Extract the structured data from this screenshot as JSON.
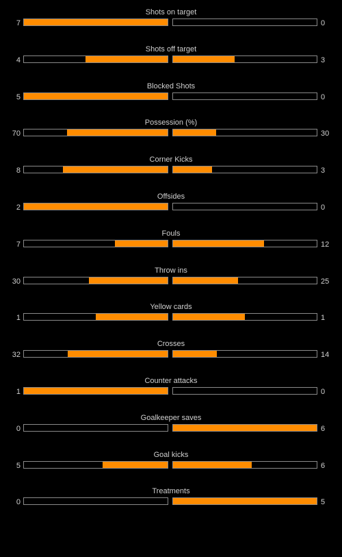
{
  "accent_color": "#ff8c00",
  "stats": [
    {
      "label": "Shots on target",
      "home": 7,
      "away": 0
    },
    {
      "label": "Shots off target",
      "home": 4,
      "away": 3
    },
    {
      "label": "Blocked Shots",
      "home": 5,
      "away": 0
    },
    {
      "label": "Possession (%)",
      "home": 70,
      "away": 30
    },
    {
      "label": "Corner Kicks",
      "home": 8,
      "away": 3
    },
    {
      "label": "Offsides",
      "home": 2,
      "away": 0
    },
    {
      "label": "Fouls",
      "home": 7,
      "away": 12
    },
    {
      "label": "Throw ins",
      "home": 30,
      "away": 25
    },
    {
      "label": "Yellow cards",
      "home": 1,
      "away": 1
    },
    {
      "label": "Crosses",
      "home": 32,
      "away": 14
    },
    {
      "label": "Counter attacks",
      "home": 1,
      "away": 0
    },
    {
      "label": "Goalkeeper saves",
      "home": 0,
      "away": 6
    },
    {
      "label": "Goal kicks",
      "home": 5,
      "away": 6
    },
    {
      "label": "Treatments",
      "home": 0,
      "away": 5
    }
  ]
}
